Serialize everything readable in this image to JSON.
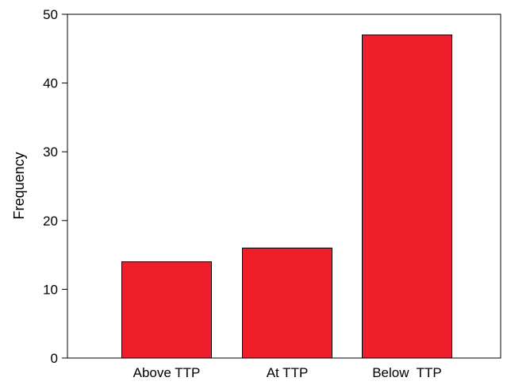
{
  "chart_data": {
    "type": "bar",
    "title": "",
    "xlabel": "",
    "ylabel": "Frequency",
    "categories": [
      "Above TTP",
      "At TTP",
      "Below  TTP"
    ],
    "values": [
      14,
      16,
      47
    ],
    "ylim": [
      0,
      50
    ],
    "yticks": [
      "0",
      "10",
      "20",
      "30",
      "40",
      "50"
    ],
    "bar_color": "#ee1f2a",
    "grid": false,
    "legend": "none"
  }
}
